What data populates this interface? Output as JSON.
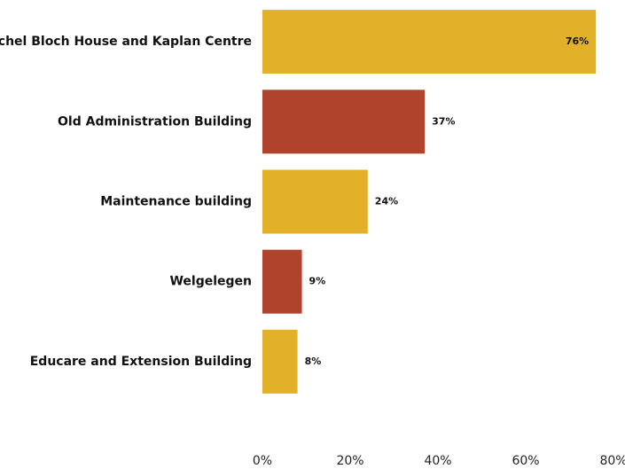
{
  "chart_data": {
    "type": "barh",
    "categories": [
      "Rachel Bloch House and Kaplan Centre",
      "Old Administration Building",
      "Maintenance building",
      "Welgelegen",
      "Educare and Extension Building"
    ],
    "values": [
      76,
      37,
      24,
      9,
      8
    ],
    "value_labels": [
      "76%",
      "37%",
      "24%",
      "9%",
      "8%"
    ],
    "colors": [
      "#e3b02a",
      "#b0432c",
      "#e3b02a",
      "#b0432c",
      "#e3b02a"
    ],
    "xlim": [
      0,
      80
    ],
    "xticks": [
      {
        "value": 0,
        "label": "0%"
      },
      {
        "value": 20,
        "label": "20%"
      },
      {
        "value": 40,
        "label": "40%"
      },
      {
        "value": 60,
        "label": "60%"
      },
      {
        "value": 80,
        "label": "80%"
      }
    ],
    "grid": false
  }
}
